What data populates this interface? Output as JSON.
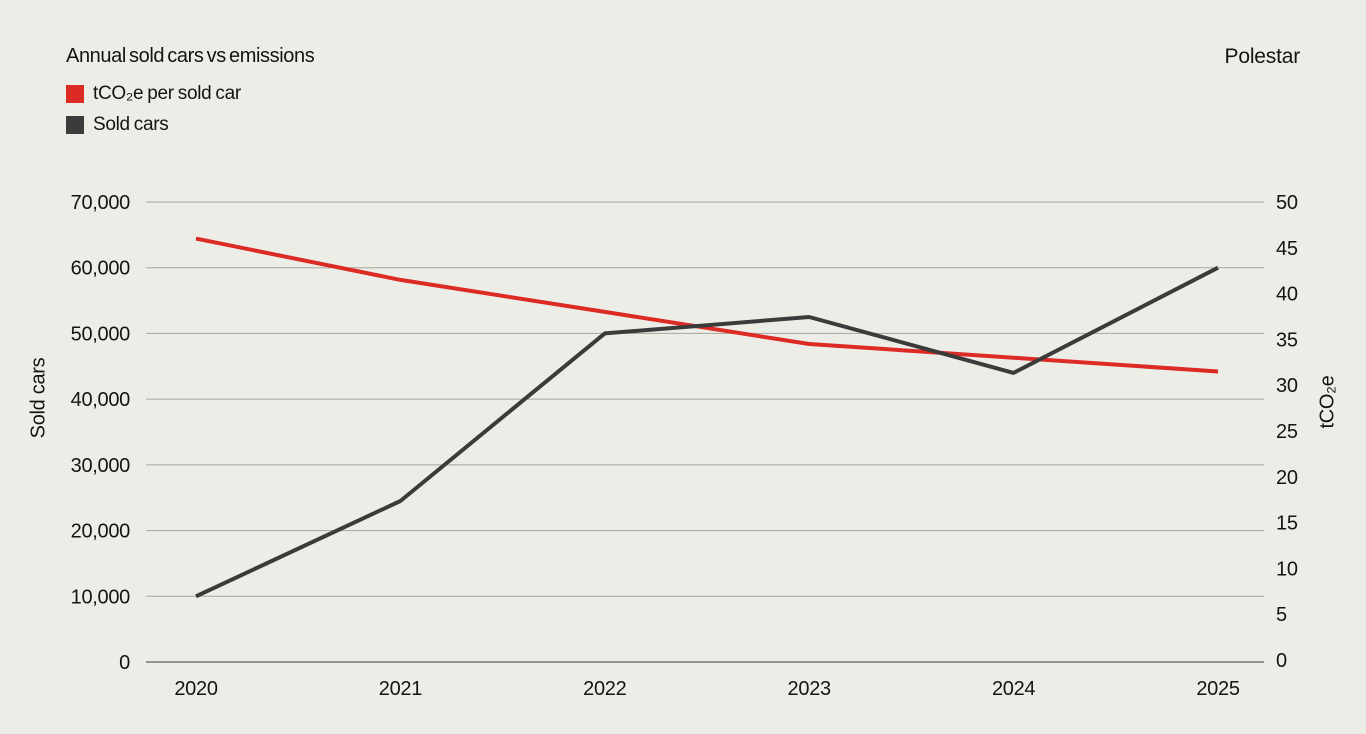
{
  "header": {
    "title": "Annual sold cars vs emissions",
    "brand": "Polestar"
  },
  "colors": {
    "background": "#EDEDE8",
    "grid_line": "#A6A69E",
    "axis_line": "#76766F",
    "text": "#141414",
    "emissions_red": "#DC2A25",
    "sold_cars_dark": "#3B3B3B"
  },
  "chart_data": {
    "type": "line",
    "title": "Annual sold cars vs emissions",
    "categories": [
      "2020",
      "2021",
      "2022",
      "2023",
      "2024",
      "2025"
    ],
    "series": [
      {
        "name": "tCO₂e per sold car",
        "axis": "right",
        "color": "#DC2A25",
        "values": [
          46,
          41.5,
          38,
          34.5,
          33,
          31.5
        ]
      },
      {
        "name": "Sold cars",
        "axis": "left",
        "color": "#3B3B3B",
        "values": [
          10000,
          24500,
          50000,
          52500,
          44000,
          60000
        ]
      }
    ],
    "left_axis": {
      "label": "Sold cars",
      "min": 0,
      "max": 70000,
      "tick_step": 10000,
      "tick_labels": [
        "0",
        "10,000",
        "20,000",
        "30,000",
        "40,000",
        "50,000",
        "60,000",
        "70,000"
      ]
    },
    "right_axis": {
      "label": "tCO₂e",
      "min": 0,
      "max": 50,
      "tick_step": 5,
      "tick_labels": [
        "0",
        "5",
        "10",
        "15",
        "20",
        "25",
        "30",
        "35",
        "40",
        "45",
        "50"
      ]
    },
    "grid": "horizontal-only",
    "legend_position": "top-left"
  }
}
